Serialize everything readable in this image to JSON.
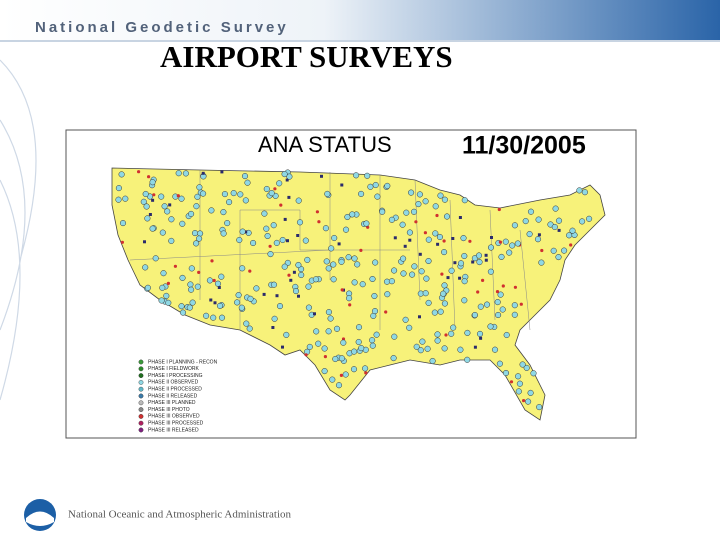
{
  "header": {
    "title": "National Geodetic Survey"
  },
  "slide": {
    "title": "AIRPORT SURVEYS"
  },
  "map": {
    "title": "ANA STATUS",
    "date": "11/30/2005",
    "legend": [
      "PHASE I PLANNING - RECON",
      "PHASE I FIELDWORK",
      "PHASE I PROCESSING",
      "PHASE II OBSERVED",
      "PHASE II PROCESSED",
      "PHASE II RELEASED",
      "PHASE III PLANNED",
      "PHASE III PHOTO",
      "PHASE III OBSERVED",
      "PHASE III PROCESSED",
      "PHASE III RELEASED"
    ]
  },
  "footer": {
    "agency": "National Oceanic and Atmospheric Administration"
  }
}
